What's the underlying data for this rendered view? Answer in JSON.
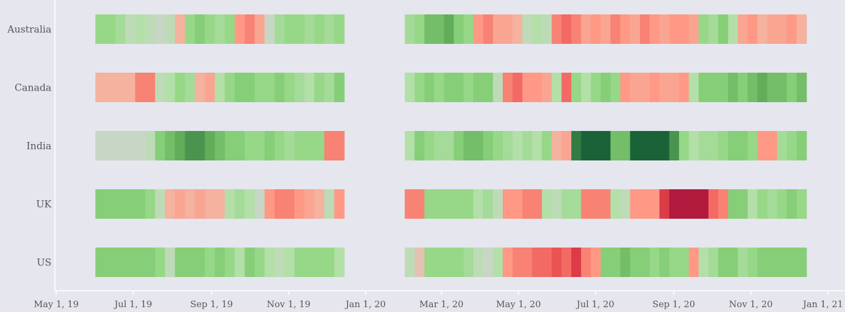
{
  "chart_data": {
    "type": "heatmap",
    "title": "",
    "xlabel": "",
    "ylabel": "",
    "x_ticks": [
      "May 1, 19",
      "Jul 1, 19",
      "Sep 1, 19",
      "Nov 1, 19",
      "Jan 1, 20",
      "Mar 1, 20",
      "May 1, 20",
      "Jul 1, 20",
      "Sep 1, 20",
      "Nov 1, 20",
      "Jan 1, 21"
    ],
    "x_range": [
      "2019-05-01",
      "2021-01-01"
    ],
    "grid": false,
    "legend": "none",
    "color_scale": {
      "low": "#a50f3a",
      "mid": "#c8d6c6",
      "high": "#1a6339",
      "domain": [
        -1,
        1
      ],
      "meaning": "weekly sentiment score: red = negative, green = positive"
    },
    "segments": [
      {
        "start": "2019-06-01",
        "end": "2019-12-15"
      },
      {
        "start": "2020-02-01",
        "end": "2020-12-15"
      }
    ],
    "series": [
      {
        "name": "Australia",
        "values": [
          0.4,
          0.4,
          0.3,
          0.1,
          0.2,
          0.1,
          0.0,
          0.1,
          -0.2,
          0.4,
          0.5,
          0.4,
          0.3,
          0.4,
          -0.4,
          -0.5,
          -0.3,
          0.0,
          0.3,
          0.4,
          0.4,
          0.3,
          0.4,
          0.3,
          0.4,
          0.3,
          0.4,
          0.6,
          0.6,
          0.7,
          0.5,
          0.4,
          -0.4,
          -0.5,
          -0.3,
          -0.3,
          -0.2,
          0.1,
          0.2,
          0.1,
          -0.5,
          -0.6,
          -0.5,
          -0.3,
          -0.4,
          -0.3,
          -0.5,
          -0.4,
          -0.3,
          -0.5,
          -0.4,
          -0.3,
          -0.4,
          -0.4,
          -0.3,
          0.4,
          0.3,
          0.5,
          0.2,
          -0.3,
          -0.4,
          -0.2,
          -0.3,
          -0.3,
          -0.4,
          -0.2
        ]
      },
      {
        "name": "Canada",
        "values": [
          -0.2,
          -0.2,
          -0.2,
          -0.2,
          -0.5,
          -0.5,
          0.1,
          0.2,
          0.4,
          0.3,
          -0.2,
          -0.3,
          0.2,
          0.4,
          0.5,
          0.5,
          0.4,
          0.4,
          0.5,
          0.4,
          0.3,
          0.2,
          0.4,
          0.3,
          0.5,
          0.2,
          0.4,
          0.5,
          0.4,
          0.5,
          0.5,
          0.4,
          0.5,
          0.5,
          0.1,
          -0.5,
          -0.6,
          -0.4,
          -0.4,
          -0.3,
          0.2,
          -0.6,
          0.4,
          0.2,
          0.4,
          0.5,
          0.4,
          -0.4,
          -0.3,
          -0.3,
          -0.4,
          -0.3,
          -0.3,
          -0.4,
          0.2,
          0.5,
          0.5,
          0.5,
          0.6,
          0.5,
          0.6,
          0.7,
          0.6,
          0.6,
          0.5,
          0.6
        ]
      },
      {
        "name": "India",
        "values": [
          0.0,
          0.0,
          0.0,
          0.0,
          0.0,
          0.1,
          0.5,
          0.6,
          0.7,
          0.8,
          0.8,
          0.7,
          0.6,
          0.5,
          0.5,
          0.4,
          0.4,
          0.5,
          0.4,
          0.3,
          0.4,
          0.4,
          0.4,
          -0.5,
          -0.5,
          0.2,
          0.5,
          0.4,
          0.3,
          0.3,
          0.5,
          0.6,
          0.6,
          0.5,
          0.4,
          0.3,
          0.2,
          0.3,
          0.2,
          0.4,
          -0.2,
          -0.3,
          0.9,
          1.0,
          1.0,
          1.0,
          0.6,
          0.6,
          1.0,
          1.0,
          1.0,
          1.0,
          0.8,
          0.4,
          0.2,
          0.3,
          0.3,
          0.4,
          0.5,
          0.5,
          0.4,
          -0.4,
          -0.4,
          0.3,
          0.4,
          0.5
        ]
      },
      {
        "name": "UK",
        "values": [
          0.5,
          0.5,
          0.5,
          0.5,
          0.5,
          0.4,
          0.1,
          -0.2,
          -0.3,
          -0.2,
          -0.3,
          -0.2,
          -0.2,
          0.2,
          0.3,
          0.2,
          0.0,
          -0.4,
          -0.5,
          -0.5,
          -0.4,
          -0.3,
          -0.2,
          0.1,
          -0.4,
          -0.5,
          -0.5,
          0.4,
          0.4,
          0.4,
          0.4,
          0.4,
          0.2,
          0.3,
          0.1,
          -0.4,
          -0.4,
          -0.5,
          -0.5,
          0.2,
          0.1,
          0.3,
          0.3,
          -0.5,
          -0.5,
          -0.5,
          0.2,
          0.1,
          -0.4,
          -0.4,
          -0.4,
          -0.8,
          -0.95,
          -0.95,
          -0.95,
          -0.95,
          -0.6,
          -0.5,
          0.5,
          0.5,
          0.2,
          0.4,
          0.3,
          0.4,
          0.5,
          0.4
        ]
      },
      {
        "name": "US",
        "values": [
          0.5,
          0.5,
          0.5,
          0.5,
          0.5,
          0.5,
          0.4,
          0.1,
          0.5,
          0.5,
          0.5,
          0.4,
          0.5,
          0.4,
          0.2,
          0.5,
          0.4,
          0.2,
          0.1,
          0.2,
          0.4,
          0.4,
          0.4,
          0.4,
          0.2,
          0.1,
          -0.1,
          0.4,
          0.4,
          0.4,
          0.4,
          0.3,
          0.1,
          0.0,
          0.2,
          -0.4,
          -0.5,
          -0.5,
          -0.6,
          -0.6,
          -0.7,
          -0.6,
          -0.8,
          -0.5,
          -0.4,
          0.5,
          0.5,
          0.6,
          0.5,
          0.5,
          0.4,
          0.5,
          0.4,
          0.4,
          -0.4,
          0.2,
          0.3,
          0.5,
          0.5,
          0.3,
          0.4,
          0.5,
          0.5,
          0.5,
          0.5,
          0.5
        ]
      }
    ]
  }
}
